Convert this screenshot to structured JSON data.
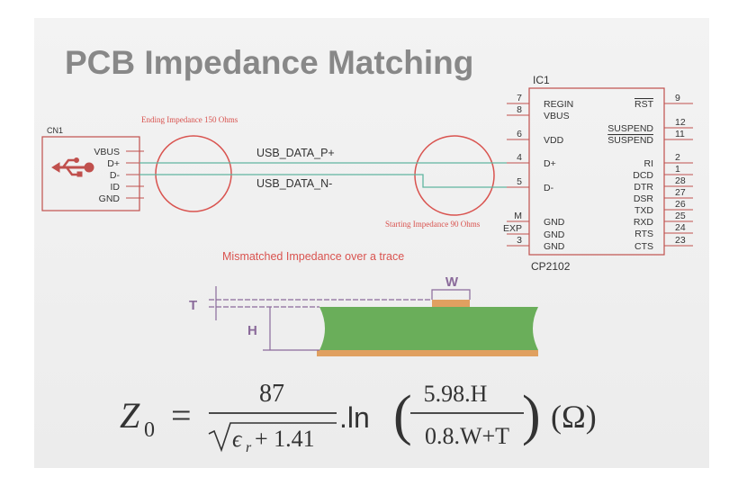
{
  "title": "PCB Impedance Matching",
  "connector": {
    "label": "CN1",
    "pins": [
      "VBUS",
      "D+",
      "D-",
      "ID",
      "GND"
    ]
  },
  "annotations": {
    "ending": "Ending Impedance 150 Ohms",
    "starting": "Starting Impedance 90 Ohms",
    "mismatch": "Mismatched Impedance over a trace"
  },
  "nets": [
    "USB_DATA_P+",
    "USB_DATA_N-"
  ],
  "ic": {
    "label": "IC1",
    "part": "CP2102",
    "left_pins": [
      {
        "number": "7",
        "name": "REGIN"
      },
      {
        "number": "8",
        "name": "VBUS"
      },
      {
        "number": "6",
        "name": "VDD"
      },
      {
        "number": "4",
        "name": "D+"
      },
      {
        "number": "5",
        "name": "D-"
      },
      {
        "number": "M",
        "name": "GND"
      },
      {
        "number": "EXP",
        "name": "GND"
      },
      {
        "number": "3",
        "name": "GND"
      }
    ],
    "right_pins": [
      {
        "number": "9",
        "name": "RST",
        "overline": true
      },
      {
        "number": "12",
        "name": "SUSPEND",
        "overline": false
      },
      {
        "number": "11",
        "name": "SUSPEND",
        "overline": true
      },
      {
        "number": "2",
        "name": "RI",
        "overline": false
      },
      {
        "number": "1",
        "name": "DCD",
        "overline": false
      },
      {
        "number": "28",
        "name": "DTR",
        "overline": false
      },
      {
        "number": "27",
        "name": "DSR",
        "overline": false
      },
      {
        "number": "26",
        "name": "TXD",
        "overline": false
      },
      {
        "number": "25",
        "name": "RXD",
        "overline": false
      },
      {
        "number": "24",
        "name": "RTS",
        "overline": false
      },
      {
        "number": "23",
        "name": "CTS",
        "overline": false
      }
    ]
  },
  "cross_section": {
    "width": "W",
    "thickness": "T",
    "height": "H"
  },
  "formula": {
    "symbol": "Z",
    "subscript": "0",
    "equals": "=",
    "numerator": "87",
    "permittivity": "ϵ",
    "permittivity_sub": "r",
    "denominator_rest": "+ 1.41",
    "ln": ".ln",
    "inner_numerator": "5.98.H",
    "inner_denominator": "0.8.W+T",
    "unit": "(Ω)"
  }
}
